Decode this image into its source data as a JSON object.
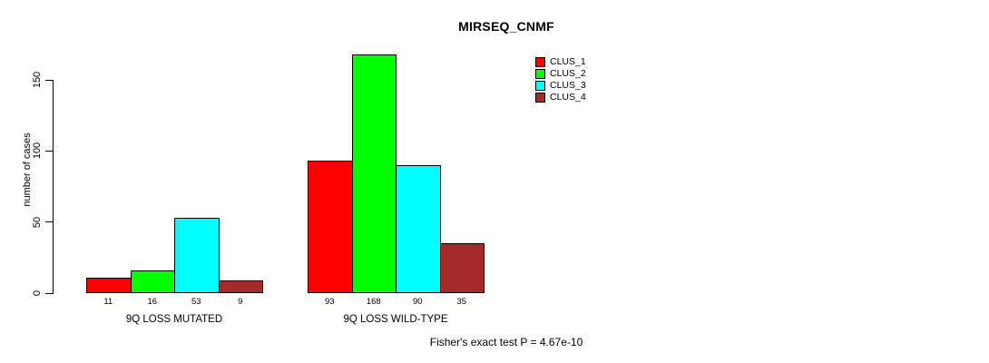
{
  "chart_data": {
    "type": "bar",
    "title": "MIRSEQ_CNMF",
    "ylabel": "number of cases",
    "xlabel": "",
    "ylim": [
      0,
      175
    ],
    "yticks": [
      0,
      50,
      100,
      150
    ],
    "grid": false,
    "legend_position": "upper-right-outside-bars",
    "bar_values_shown_as_labels": true,
    "categories": [
      "9Q LOSS MUTATED",
      "9Q LOSS WILD-TYPE"
    ],
    "series": [
      {
        "name": "CLUS_1",
        "color": "#ff0000",
        "values": [
          11,
          93
        ]
      },
      {
        "name": "CLUS_2",
        "color": "#00ff00",
        "values": [
          16,
          168
        ]
      },
      {
        "name": "CLUS_3",
        "color": "#00ffff",
        "values": [
          53,
          90
        ]
      },
      {
        "name": "CLUS_4",
        "color": "#a52a2a",
        "values": [
          9,
          35
        ]
      }
    ],
    "annotation": "Fisher's exact test P = 4.67e-10"
  },
  "legend": {
    "items": [
      {
        "label": "CLUS_1",
        "color": "#ff0000"
      },
      {
        "label": "CLUS_2",
        "color": "#00ff00"
      },
      {
        "label": "CLUS_3",
        "color": "#00ffff"
      },
      {
        "label": "CLUS_4",
        "color": "#a52a2a"
      }
    ]
  }
}
